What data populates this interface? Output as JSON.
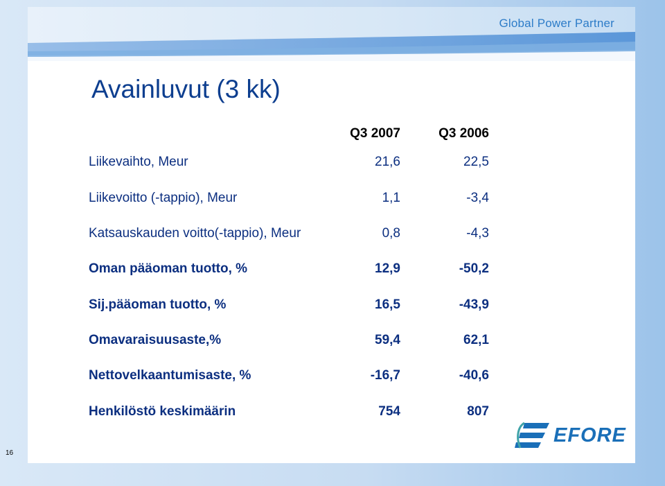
{
  "header": {
    "brand": "Global Power Partner"
  },
  "title": "Avainluvut (3 kk)",
  "columns": [
    "Q3 2007",
    "Q3 2006"
  ],
  "rows": [
    {
      "label": "Liikevaihto, Meur",
      "q3_2007": "21,6",
      "q3_2006": "22,5"
    },
    {
      "label": "Liikevoitto (-tappio), Meur",
      "q3_2007": "1,1",
      "q3_2006": "-3,4"
    },
    {
      "label": "Katsauskauden voitto(-tappio), Meur",
      "q3_2007": "0,8",
      "q3_2006": "-4,3"
    },
    {
      "label": "Oman pääoman tuotto, %",
      "q3_2007": "12,9",
      "q3_2006": "-50,2"
    },
    {
      "label": "Sij.pääoman tuotto, %",
      "q3_2007": "16,5",
      "q3_2006": "-43,9"
    },
    {
      "label": "Omavaraisuusaste,%",
      "q3_2007": "59,4",
      "q3_2006": "62,1"
    },
    {
      "label": "Nettovelkaantumisaste, %",
      "q3_2007": "-16,7",
      "q3_2006": "-40,6"
    },
    {
      "label": "Henkilöstö keskimäärin",
      "q3_2007": "754",
      "q3_2006": "807"
    }
  ],
  "logo": {
    "text": "EFORE"
  },
  "page_number": "16",
  "colors": {
    "title": "#0d3e8f",
    "text": "#0c2f80",
    "brand": "#2d7cc8",
    "logo": "#1a6fb8"
  }
}
